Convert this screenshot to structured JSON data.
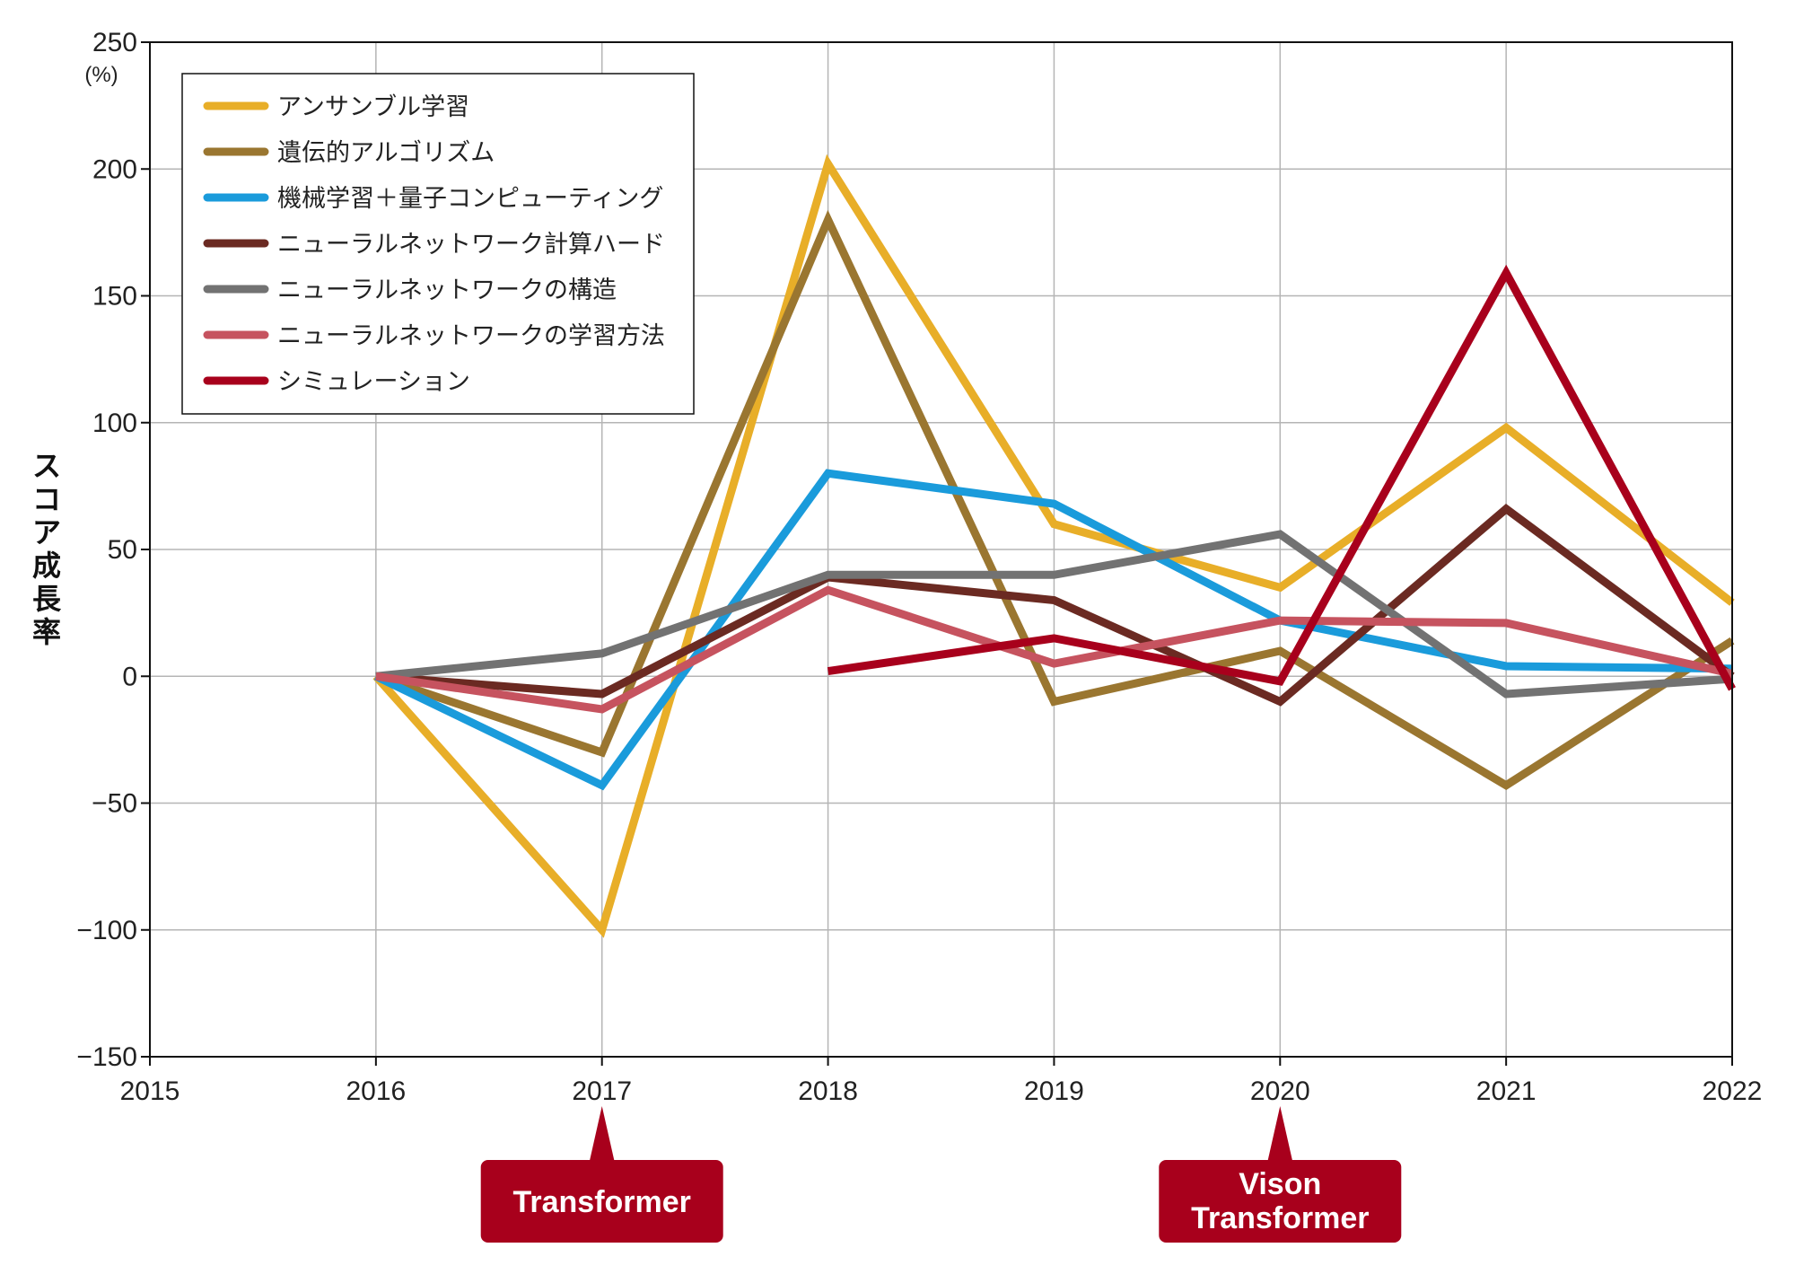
{
  "chart_data": {
    "type": "line",
    "title": "",
    "xlabel": "",
    "ylabel": "スコア成長率",
    "yunit": "(%)",
    "ylim": [
      -150,
      250
    ],
    "yticks": [
      -150,
      -100,
      -50,
      0,
      50,
      100,
      150,
      200,
      250
    ],
    "ytick_labels": [
      "−150",
      "−100",
      "−50",
      "0",
      "50",
      "100",
      "150",
      "200",
      "250"
    ],
    "xlim": [
      2015,
      2022
    ],
    "x": [
      2015,
      2016,
      2017,
      2018,
      2019,
      2020,
      2021,
      2022
    ],
    "xtick_labels": [
      "2015",
      "2016",
      "2017",
      "2018",
      "2019",
      "2020",
      "2021",
      "2022"
    ],
    "grid": true,
    "legend_position": "top-left",
    "series": [
      {
        "name": "アンサンブル学習",
        "color": "#E8AE28",
        "points": [
          [
            2016,
            0
          ],
          [
            2017,
            -100
          ],
          [
            2018,
            202
          ],
          [
            2019,
            60
          ],
          [
            2020,
            35
          ],
          [
            2021,
            98
          ],
          [
            2022,
            29
          ]
        ]
      },
      {
        "name": "遺伝的アルゴリズム",
        "color": "#9A7630",
        "points": [
          [
            2016,
            0
          ],
          [
            2017,
            -30
          ],
          [
            2018,
            180
          ],
          [
            2019,
            -10
          ],
          [
            2020,
            10
          ],
          [
            2021,
            -43
          ],
          [
            2022,
            14
          ]
        ]
      },
      {
        "name": "機械学習＋量子コンピューティング",
        "color": "#1A9BDB",
        "points": [
          [
            2016,
            0
          ],
          [
            2017,
            -43
          ],
          [
            2018,
            80
          ],
          [
            2019,
            68
          ],
          [
            2020,
            22
          ],
          [
            2021,
            4
          ],
          [
            2022,
            3
          ]
        ]
      },
      {
        "name": "ニューラルネットワーク計算ハード",
        "color": "#6B2A22",
        "points": [
          [
            2016,
            0
          ],
          [
            2017,
            -7
          ],
          [
            2018,
            39
          ],
          [
            2019,
            30
          ],
          [
            2020,
            -10
          ],
          [
            2021,
            66
          ],
          [
            2022,
            0
          ]
        ]
      },
      {
        "name": "ニューラルネットワークの構造",
        "color": "#727272",
        "points": [
          [
            2016,
            0
          ],
          [
            2017,
            9
          ],
          [
            2018,
            40
          ],
          [
            2019,
            40
          ],
          [
            2020,
            56
          ],
          [
            2021,
            -7
          ],
          [
            2022,
            -1
          ]
        ]
      },
      {
        "name": "ニューラルネットワークの学習方法",
        "color": "#C6535F",
        "points": [
          [
            2016,
            0
          ],
          [
            2017,
            -13
          ],
          [
            2018,
            34
          ],
          [
            2019,
            5
          ],
          [
            2020,
            22
          ],
          [
            2021,
            21
          ],
          [
            2022,
            1
          ]
        ]
      },
      {
        "name": "シミュレーション",
        "color": "#A8001C",
        "points": [
          [
            2018,
            2
          ],
          [
            2019,
            15
          ],
          [
            2020,
            -2
          ],
          [
            2021,
            159
          ],
          [
            2022,
            -5
          ]
        ]
      }
    ],
    "annotations": [
      {
        "x": 2017,
        "lines": [
          "Transformer"
        ]
      },
      {
        "x": 2020,
        "lines": [
          "Vison",
          "Transformer"
        ]
      }
    ]
  },
  "colors": {
    "axis": "#111111",
    "grid": "#B5B5B5",
    "callout": "#A8001C"
  }
}
